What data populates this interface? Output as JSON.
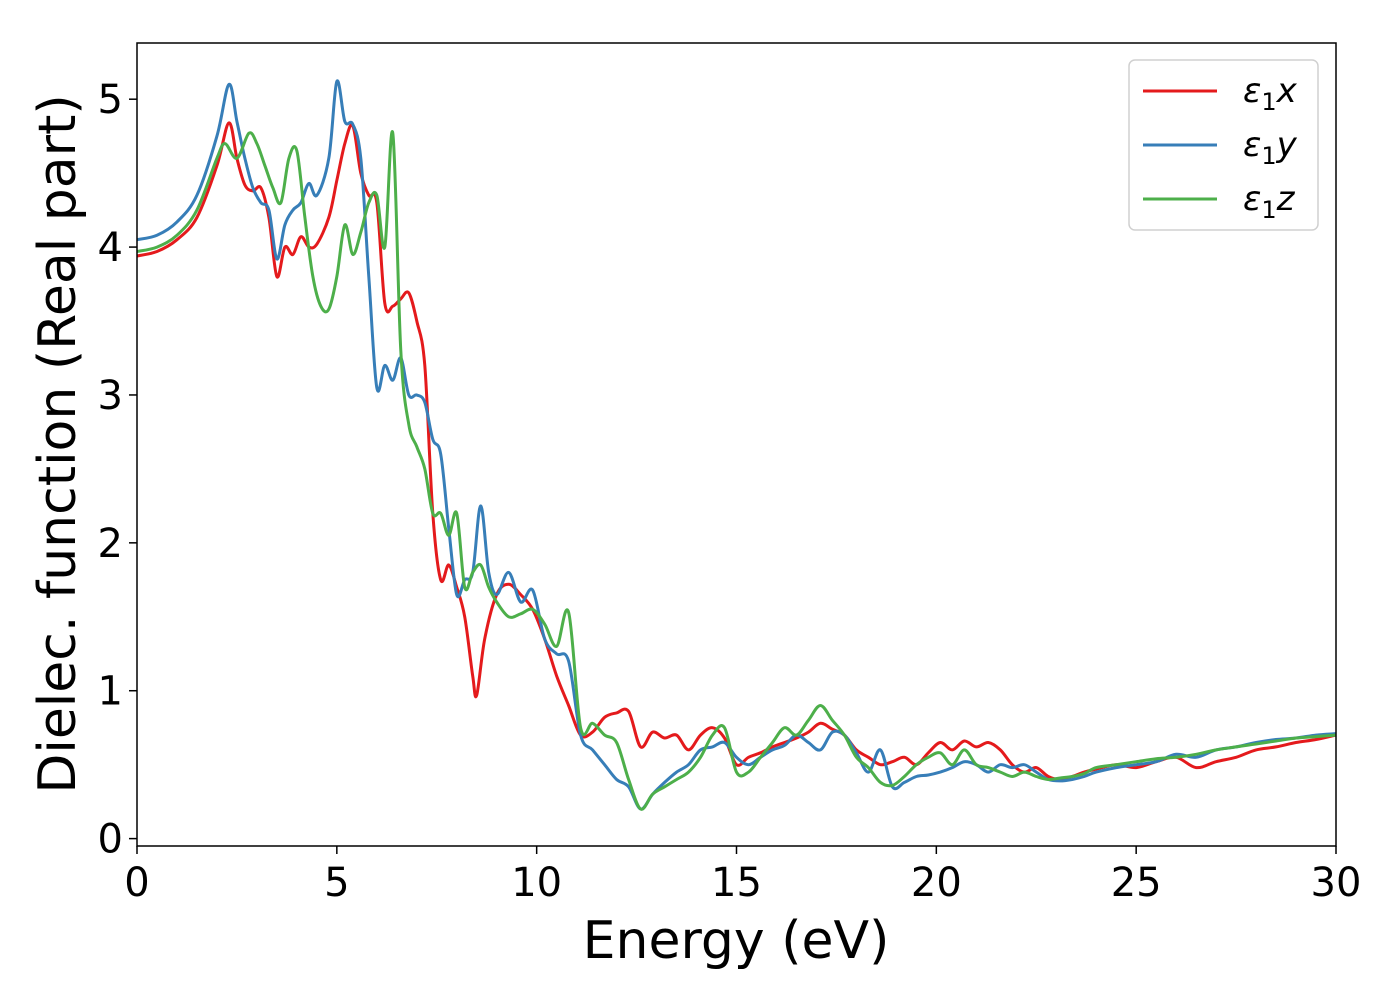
{
  "chart_data": {
    "type": "line",
    "title": "",
    "xlabel": "Energy (eV)",
    "ylabel": "Dielec. function (Real part)",
    "xlim": [
      0,
      30
    ],
    "ylim": [
      -0.05,
      5.38
    ],
    "xticks": [
      0,
      5,
      10,
      15,
      20,
      25,
      30
    ],
    "yticks": [
      0,
      1,
      2,
      3,
      4,
      5
    ],
    "grid": false,
    "legend_position": "top-right",
    "series": [
      {
        "name": "ε1x",
        "legend_base": "ε",
        "legend_sub": "1",
        "legend_suffix": "x",
        "color": "#e41a1c",
        "x": [
          0,
          0.5,
          1,
          1.5,
          2,
          2.3,
          2.5,
          2.7,
          2.9,
          3.1,
          3.3,
          3.5,
          3.7,
          3.9,
          4.1,
          4.3,
          4.5,
          4.8,
          5.0,
          5.2,
          5.4,
          5.6,
          5.8,
          6.0,
          6.2,
          6.4,
          6.6,
          6.8,
          7.0,
          7.2,
          7.4,
          7.6,
          7.8,
          8.0,
          8.2,
          8.4,
          8.5,
          8.7,
          9.0,
          9.3,
          9.6,
          9.9,
          10.2,
          10.5,
          10.8,
          11.1,
          11.4,
          11.7,
          12.0,
          12.3,
          12.6,
          12.9,
          13.2,
          13.5,
          13.8,
          14.1,
          14.4,
          14.7,
          15.0,
          15.3,
          15.6,
          15.9,
          16.2,
          16.5,
          16.8,
          17.1,
          17.4,
          17.7,
          18.0,
          18.3,
          18.6,
          18.9,
          19.2,
          19.5,
          19.8,
          20.1,
          20.4,
          20.7,
          21.0,
          21.3,
          21.6,
          21.9,
          22.2,
          22.5,
          22.8,
          23.1,
          23.4,
          23.7,
          24.0,
          24.5,
          25.0,
          25.5,
          26.0,
          26.5,
          27.0,
          27.5,
          28.0,
          28.5,
          29.0,
          29.5,
          30.0
        ],
        "y": [
          3.94,
          3.97,
          4.05,
          4.2,
          4.55,
          4.84,
          4.6,
          4.42,
          4.38,
          4.4,
          4.2,
          3.8,
          4.0,
          3.95,
          4.07,
          4.0,
          4.02,
          4.2,
          4.45,
          4.7,
          4.82,
          4.5,
          4.35,
          4.3,
          3.62,
          3.6,
          3.65,
          3.69,
          3.5,
          3.2,
          2.2,
          1.75,
          1.85,
          1.7,
          1.5,
          1.1,
          0.97,
          1.35,
          1.65,
          1.72,
          1.65,
          1.55,
          1.35,
          1.1,
          0.9,
          0.7,
          0.72,
          0.82,
          0.85,
          0.86,
          0.62,
          0.72,
          0.68,
          0.7,
          0.6,
          0.7,
          0.75,
          0.68,
          0.5,
          0.55,
          0.58,
          0.62,
          0.65,
          0.68,
          0.72,
          0.78,
          0.74,
          0.7,
          0.6,
          0.55,
          0.5,
          0.52,
          0.55,
          0.5,
          0.58,
          0.65,
          0.6,
          0.66,
          0.62,
          0.65,
          0.6,
          0.5,
          0.45,
          0.48,
          0.42,
          0.4,
          0.42,
          0.45,
          0.47,
          0.5,
          0.48,
          0.52,
          0.55,
          0.48,
          0.52,
          0.55,
          0.6,
          0.62,
          0.65,
          0.67,
          0.7
        ]
      },
      {
        "name": "ε1y",
        "legend_base": "ε",
        "legend_sub": "1",
        "legend_suffix": "y",
        "color": "#377eb8",
        "x": [
          0,
          0.5,
          1,
          1.5,
          2,
          2.3,
          2.5,
          2.7,
          2.9,
          3.1,
          3.3,
          3.5,
          3.7,
          3.9,
          4.1,
          4.3,
          4.5,
          4.8,
          5.0,
          5.2,
          5.4,
          5.6,
          5.8,
          6.0,
          6.2,
          6.4,
          6.6,
          6.8,
          7.0,
          7.2,
          7.4,
          7.6,
          7.8,
          8.0,
          8.2,
          8.4,
          8.6,
          8.8,
          9.0,
          9.3,
          9.6,
          9.9,
          10.2,
          10.5,
          10.8,
          11.1,
          11.4,
          11.7,
          12.0,
          12.3,
          12.6,
          12.9,
          13.2,
          13.5,
          13.8,
          14.1,
          14.4,
          14.7,
          15.0,
          15.3,
          15.6,
          15.9,
          16.2,
          16.5,
          16.8,
          17.1,
          17.4,
          17.7,
          18.0,
          18.3,
          18.6,
          18.9,
          19.2,
          19.5,
          19.8,
          20.1,
          20.4,
          20.7,
          21.0,
          21.3,
          21.6,
          21.9,
          22.2,
          22.5,
          22.8,
          23.1,
          23.4,
          23.7,
          24.0,
          24.5,
          25.0,
          25.5,
          26.0,
          26.5,
          27.0,
          27.5,
          28.0,
          28.5,
          29.0,
          29.5,
          30.0
        ],
        "y": [
          4.05,
          4.08,
          4.17,
          4.35,
          4.75,
          5.1,
          4.85,
          4.6,
          4.4,
          4.3,
          4.25,
          3.92,
          4.15,
          4.25,
          4.3,
          4.43,
          4.35,
          4.6,
          5.12,
          4.85,
          4.83,
          4.6,
          3.8,
          3.05,
          3.2,
          3.1,
          3.25,
          3.0,
          3.0,
          2.95,
          2.7,
          2.6,
          2.1,
          1.65,
          1.75,
          1.8,
          2.25,
          1.8,
          1.65,
          1.8,
          1.6,
          1.68,
          1.35,
          1.25,
          1.2,
          0.7,
          0.6,
          0.5,
          0.4,
          0.35,
          0.2,
          0.3,
          0.38,
          0.45,
          0.5,
          0.6,
          0.62,
          0.65,
          0.55,
          0.5,
          0.55,
          0.6,
          0.63,
          0.7,
          0.65,
          0.6,
          0.72,
          0.7,
          0.58,
          0.45,
          0.6,
          0.35,
          0.38,
          0.42,
          0.43,
          0.45,
          0.48,
          0.52,
          0.5,
          0.45,
          0.5,
          0.48,
          0.5,
          0.45,
          0.4,
          0.39,
          0.4,
          0.42,
          0.45,
          0.48,
          0.5,
          0.52,
          0.57,
          0.55,
          0.6,
          0.62,
          0.65,
          0.67,
          0.68,
          0.7,
          0.71
        ]
      },
      {
        "name": "ε1z",
        "legend_base": "ε",
        "legend_sub": "1",
        "legend_suffix": "z",
        "color": "#4daf4a",
        "x": [
          0,
          0.5,
          1,
          1.5,
          2,
          2.2,
          2.5,
          2.8,
          3.0,
          3.2,
          3.4,
          3.6,
          3.8,
          4.0,
          4.2,
          4.4,
          4.6,
          4.8,
          5.0,
          5.2,
          5.4,
          5.6,
          5.8,
          6.0,
          6.2,
          6.4,
          6.6,
          6.8,
          7.0,
          7.2,
          7.4,
          7.6,
          7.8,
          8.0,
          8.2,
          8.4,
          8.6,
          8.8,
          9.0,
          9.3,
          9.6,
          9.9,
          10.2,
          10.5,
          10.8,
          11.1,
          11.4,
          11.7,
          12.0,
          12.3,
          12.6,
          12.9,
          13.2,
          13.5,
          13.8,
          14.1,
          14.4,
          14.7,
          15.0,
          15.3,
          15.6,
          15.9,
          16.2,
          16.5,
          16.8,
          17.1,
          17.4,
          17.7,
          18.0,
          18.3,
          18.6,
          18.9,
          19.2,
          19.5,
          19.8,
          20.1,
          20.4,
          20.7,
          21.0,
          21.3,
          21.6,
          21.9,
          22.2,
          22.5,
          22.8,
          23.1,
          23.4,
          23.7,
          24.0,
          24.5,
          25.0,
          25.5,
          26.0,
          26.5,
          27.0,
          27.5,
          28.0,
          28.5,
          29.0,
          29.5,
          30.0
        ],
        "y": [
          3.97,
          4.0,
          4.08,
          4.25,
          4.6,
          4.7,
          4.6,
          4.77,
          4.7,
          4.55,
          4.4,
          4.3,
          4.6,
          4.65,
          4.2,
          3.8,
          3.6,
          3.58,
          3.8,
          4.15,
          3.95,
          4.1,
          4.3,
          4.35,
          4.0,
          4.77,
          3.3,
          2.8,
          2.65,
          2.5,
          2.2,
          2.2,
          2.05,
          2.2,
          1.7,
          1.8,
          1.85,
          1.7,
          1.6,
          1.5,
          1.52,
          1.55,
          1.45,
          1.3,
          1.53,
          0.75,
          0.78,
          0.7,
          0.65,
          0.4,
          0.2,
          0.3,
          0.35,
          0.4,
          0.45,
          0.55,
          0.7,
          0.75,
          0.45,
          0.45,
          0.55,
          0.65,
          0.75,
          0.7,
          0.8,
          0.9,
          0.8,
          0.7,
          0.55,
          0.48,
          0.38,
          0.36,
          0.42,
          0.5,
          0.55,
          0.58,
          0.5,
          0.6,
          0.5,
          0.48,
          0.45,
          0.42,
          0.45,
          0.42,
          0.4,
          0.41,
          0.42,
          0.44,
          0.48,
          0.5,
          0.52,
          0.54,
          0.55,
          0.57,
          0.6,
          0.62,
          0.64,
          0.66,
          0.68,
          0.69,
          0.7
        ]
      }
    ]
  }
}
